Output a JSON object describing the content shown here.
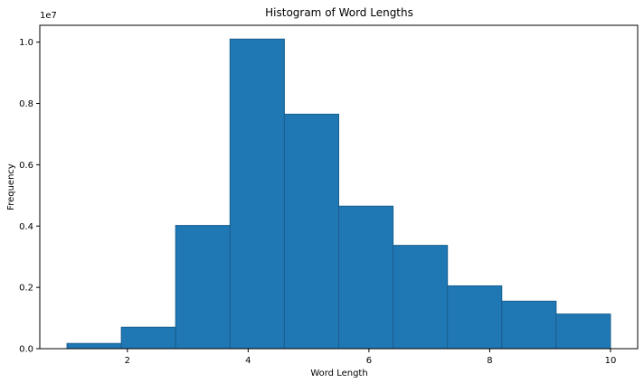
{
  "chart_data": {
    "type": "bar",
    "title": "Histogram of Word Lengths",
    "xlabel": "Word Length",
    "ylabel": "Frequency",
    "y_offset_text": "1e7",
    "xlim": [
      0.55,
      10.45
    ],
    "ylim": [
      0,
      1.055
    ],
    "x_ticks": [
      2,
      4,
      6,
      8,
      10
    ],
    "y_ticks": [
      0.0,
      0.2,
      0.4,
      0.6,
      0.8,
      1.0
    ],
    "y_tick_labels": [
      "0.0",
      "0.2",
      "0.4",
      "0.6",
      "0.8",
      "1.0"
    ],
    "bins": [
      {
        "x0": 1.0,
        "x1": 1.9,
        "value": 0.017
      },
      {
        "x0": 1.9,
        "x1": 2.8,
        "value": 0.07
      },
      {
        "x0": 2.8,
        "x1": 3.7,
        "value": 0.402
      },
      {
        "x0": 3.7,
        "x1": 4.6,
        "value": 1.01
      },
      {
        "x0": 4.6,
        "x1": 5.5,
        "value": 0.765
      },
      {
        "x0": 5.5,
        "x1": 6.4,
        "value": 0.465
      },
      {
        "x0": 6.4,
        "x1": 7.3,
        "value": 0.337
      },
      {
        "x0": 7.3,
        "x1": 8.2,
        "value": 0.205
      },
      {
        "x0": 8.2,
        "x1": 9.1,
        "value": 0.155
      },
      {
        "x0": 9.1,
        "x1": 10.0,
        "value": 0.113
      }
    ],
    "bar_color": "#1f77b4",
    "bar_edge_color": "#1a5f8f",
    "grid": false,
    "legend": "none"
  }
}
